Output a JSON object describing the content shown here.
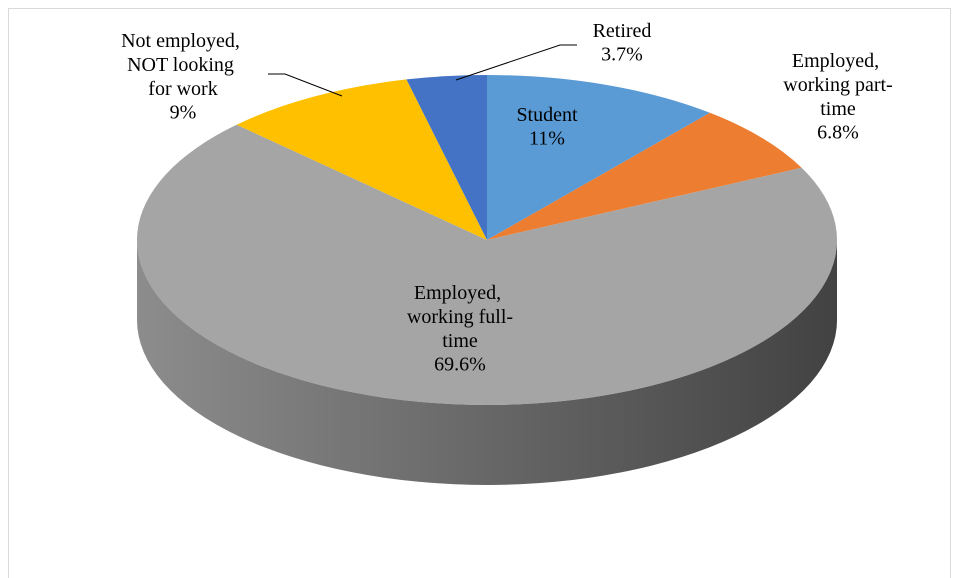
{
  "chart_data": {
    "type": "pie",
    "categories": [
      "Student",
      "Employed, working part-time",
      "Employed, working full-time",
      "Not employed, NOT looking for work",
      "Retired"
    ],
    "values": [
      11,
      6.8,
      69.6,
      9,
      3.7
    ],
    "value_labels": [
      "11%",
      "6.8%",
      "69.6%",
      "9%",
      "3.7%"
    ],
    "colors": [
      "#5b9bd5",
      "#ed7d31",
      "#a5a5a5",
      "#ffc000",
      "#4472c4"
    ]
  }
}
